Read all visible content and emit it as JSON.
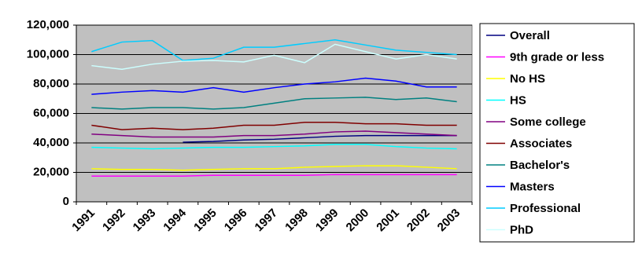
{
  "chart_data": {
    "type": "line",
    "categories": [
      "1991",
      "1992",
      "1993",
      "1994",
      "1995",
      "1996",
      "1997",
      "1998",
      "1999",
      "2000",
      "2001",
      "2002",
      "2003"
    ],
    "ylim": [
      0,
      120000
    ],
    "yticks": [
      0,
      {
        "value": 20000,
        "label": "20,000"
      },
      {
        "value": 40000,
        "label": "40,000"
      },
      {
        "value": 60000,
        "label": "60,000"
      },
      {
        "value": 80000,
        "label": "80,000"
      },
      {
        "value": 100000,
        "label": "100,000"
      },
      {
        "value": 120000,
        "label": "120,000"
      }
    ],
    "grid": true,
    "legend": "right",
    "series": [
      {
        "name": "Overall",
        "color": "#000080",
        "values": [
          null,
          null,
          null,
          40500,
          41000,
          42000,
          42500,
          43500,
          44500,
          45000,
          45000,
          45000,
          45000
        ]
      },
      {
        "name": "9th grade or less",
        "color": "#FF00FF",
        "values": [
          17500,
          17500,
          17500,
          17500,
          18000,
          18000,
          18000,
          18000,
          18500,
          18500,
          18500,
          18500,
          18500
        ]
      },
      {
        "name": "No HS",
        "color": "#FFFF00",
        "values": [
          22500,
          22000,
          22000,
          21500,
          22000,
          22500,
          22500,
          23500,
          24000,
          24500,
          24500,
          23500,
          22500
        ]
      },
      {
        "name": "HS",
        "color": "#00FFFF",
        "values": [
          37000,
          36500,
          36000,
          36500,
          37000,
          37000,
          37500,
          38000,
          39000,
          39000,
          37500,
          36500,
          36000
        ]
      },
      {
        "name": "Some college",
        "color": "#800080",
        "values": [
          46000,
          45000,
          44000,
          44000,
          44000,
          45000,
          45000,
          46000,
          47500,
          48000,
          47000,
          46000,
          45000
        ]
      },
      {
        "name": "Associates",
        "color": "#800000",
        "values": [
          52000,
          49000,
          50000,
          49000,
          50000,
          52000,
          52000,
          54000,
          54000,
          53000,
          53000,
          52000,
          52000
        ]
      },
      {
        "name": "Bachelor's",
        "color": "#008080",
        "values": [
          64000,
          63000,
          64000,
          64000,
          63000,
          64000,
          67000,
          70000,
          70500,
          71000,
          69500,
          70500,
          68000
        ]
      },
      {
        "name": "Masters",
        "color": "#0000FF",
        "values": [
          73000,
          74500,
          75500,
          74500,
          77500,
          74500,
          77500,
          80000,
          81500,
          84000,
          82000,
          78000,
          78000
        ]
      },
      {
        "name": "Professional",
        "color": "#00CCFF",
        "values": [
          102000,
          108500,
          109500,
          96000,
          97500,
          105000,
          105000,
          107500,
          110000,
          106500,
          103000,
          101500,
          100000
        ]
      },
      {
        "name": "PhD",
        "color": "#CCFFFF",
        "values": [
          92500,
          90000,
          93500,
          95500,
          96000,
          95000,
          99500,
          94500,
          107000,
          102000,
          97000,
          100000,
          97000
        ]
      }
    ]
  }
}
